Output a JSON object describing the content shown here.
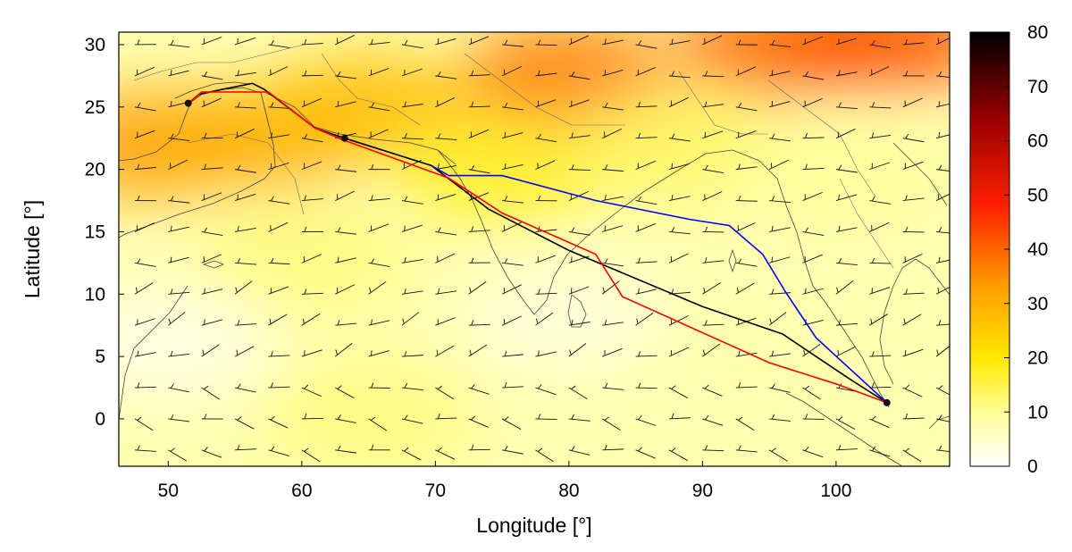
{
  "chart_data": {
    "type": "heatmap",
    "title": "",
    "xlabel": "Longitude [°]",
    "ylabel": "Latitude [°]",
    "xlim": [
      46.3,
      108.5
    ],
    "ylim": [
      -3.8,
      31.0
    ],
    "x_ticks": [
      "50",
      "60",
      "70",
      "80",
      "90",
      "100"
    ],
    "x_tick_values": [
      50,
      60,
      70,
      80,
      90,
      100
    ],
    "y_ticks": [
      "0",
      "5",
      "10",
      "15",
      "20",
      "25",
      "30"
    ],
    "y_tick_values": [
      0,
      5,
      10,
      15,
      20,
      25,
      30
    ],
    "colorbar": {
      "min": 0,
      "max": 80,
      "ticks": [
        "0",
        "10",
        "20",
        "30",
        "40",
        "50",
        "60",
        "70",
        "80"
      ],
      "tick_values": [
        0,
        10,
        20,
        30,
        40,
        50,
        60,
        70,
        80
      ],
      "colors": [
        "#ffffff",
        "#ffff80",
        "#ffe000",
        "#ff8000",
        "#ff2000",
        "#a00000",
        "#000000"
      ]
    },
    "grid": false,
    "legend": "none",
    "field_hotspots": [
      {
        "lon": 80,
        "lat": 27.5,
        "value": 38
      },
      {
        "lon": 96,
        "lat": 30,
        "value": 40
      },
      {
        "lon": 104,
        "lat": 30.5,
        "value": 42
      },
      {
        "lon": 49,
        "lat": 22,
        "value": 34
      },
      {
        "lon": 57,
        "lat": 22.5,
        "value": 30
      },
      {
        "lon": 65,
        "lat": 25,
        "value": 28
      },
      {
        "lon": 75,
        "lat": 20,
        "value": 18
      },
      {
        "lon": 60,
        "lat": 13,
        "value": 12
      },
      {
        "lon": 88,
        "lat": 22,
        "value": 14
      },
      {
        "lon": 100,
        "lat": 20,
        "value": 10
      },
      {
        "lon": 50,
        "lat": 6,
        "value": 2
      },
      {
        "lon": 80,
        "lat": 8,
        "value": 3
      },
      {
        "lon": 92,
        "lat": 4,
        "value": 8
      },
      {
        "lon": 65,
        "lat": 0,
        "value": 12
      }
    ],
    "series": [
      {
        "color": "#000000",
        "x": [
          51.5,
          52.3,
          54.0,
          56.3,
          57.2,
          61.0,
          63.2,
          69.7,
          74.0,
          80.0,
          90.0,
          96.0,
          101.0,
          103.8
        ],
        "y": [
          25.3,
          26.0,
          26.4,
          26.9,
          26.4,
          23.3,
          22.5,
          20.3,
          16.8,
          13.5,
          9.0,
          6.8,
          3.2,
          1.3
        ]
      },
      {
        "color": "#ff0000",
        "x": [
          51.5,
          52.5,
          54.0,
          57.5,
          61.0,
          63.0,
          71.0,
          75.0,
          82.0,
          84.0,
          95.0,
          100.0,
          103.8
        ],
        "y": [
          25.3,
          26.2,
          26.2,
          26.2,
          23.3,
          22.4,
          19.3,
          16.5,
          13.2,
          9.8,
          4.5,
          2.8,
          1.3
        ]
      },
      {
        "color": "#0000ff",
        "x": [
          69.7,
          71.0,
          75.0,
          82.0,
          89.0,
          92.0,
          94.5,
          96.2,
          98.5,
          103.8
        ],
        "y": [
          20.3,
          19.5,
          19.5,
          17.5,
          16.0,
          15.5,
          13.2,
          10.2,
          6.5,
          1.3
        ]
      }
    ],
    "points": [
      {
        "x": 51.5,
        "y": 25.3
      },
      {
        "x": 63.2,
        "y": 22.5
      },
      {
        "x": 103.8,
        "y": 1.3
      }
    ]
  }
}
